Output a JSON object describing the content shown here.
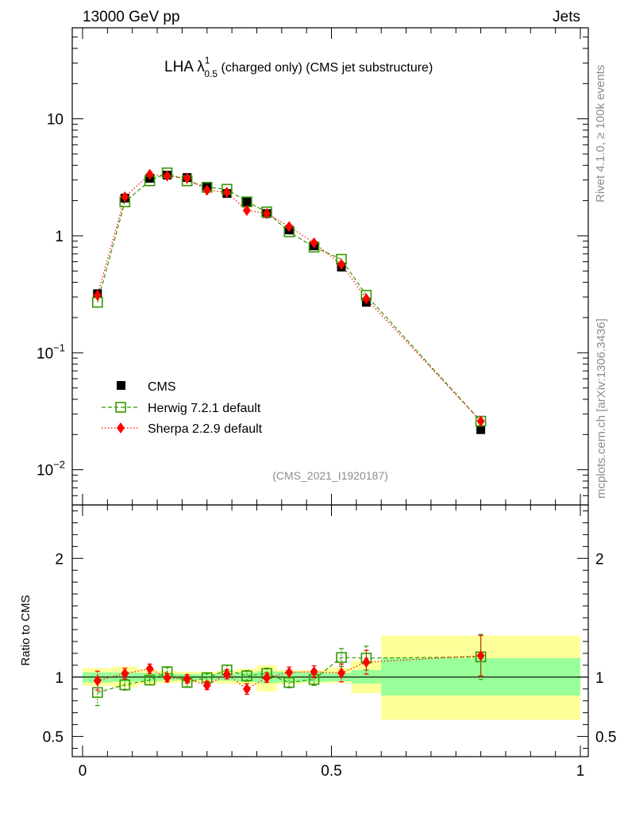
{
  "header": {
    "left": "13000 GeV pp",
    "right": "Jets"
  },
  "title": {
    "main": "LHA λ",
    "sup": "1",
    "sub": "0.5",
    "rest": " (charged only) (CMS jet substructure)"
  },
  "side_labels": {
    "rivet": "Rivet 4.1.0, ≥ 100k events",
    "mcplots": "mcplots.cern.ch [arXiv:1306.3436]"
  },
  "analysis_tag": "(CMS_2021_I1920187)",
  "ratio_ylabel": "Ratio to CMS",
  "colors": {
    "cms": "#000000",
    "herwig": "#339900",
    "sherpa": "#ff0000",
    "band_yellow": "#ffff99",
    "band_green": "#99ff99"
  },
  "chart_data": [
    {
      "type": "scatter",
      "panel": "main",
      "yscale": "log",
      "xlim": [
        0,
        1
      ],
      "ylim": [
        0.005,
        60
      ],
      "yticks": [
        {
          "value": 10,
          "label": "10"
        },
        {
          "value": 1,
          "label": "1"
        },
        {
          "value": 0.1,
          "label": "10",
          "exp": "−1"
        },
        {
          "value": 0.01,
          "label": "10",
          "exp": "−2"
        }
      ],
      "legend": [
        "CMS",
        "Herwig 7.2.1 default",
        "Sherpa 2.2.9 default"
      ],
      "x": [
        0.03,
        0.085,
        0.135,
        0.17,
        0.21,
        0.25,
        0.29,
        0.33,
        0.37,
        0.415,
        0.465,
        0.52,
        0.57,
        0.8
      ],
      "series": [
        {
          "name": "CMS",
          "values": [
            0.32,
            2.1,
            3.1,
            3.3,
            3.15,
            2.65,
            2.3,
            1.95,
            1.55,
            1.12,
            0.82,
            0.54,
            0.27,
            0.022
          ]
        },
        {
          "name": "Herwig 7.2.1 default",
          "values": [
            0.27,
            1.95,
            2.95,
            3.45,
            2.95,
            2.6,
            2.5,
            1.95,
            1.6,
            1.08,
            0.8,
            0.63,
            0.31,
            0.026
          ]
        },
        {
          "name": "Sherpa 2.2.9 default",
          "values": [
            0.31,
            2.15,
            3.35,
            3.25,
            3.1,
            2.45,
            2.35,
            1.65,
            1.55,
            1.2,
            0.87,
            0.57,
            0.29,
            0.026
          ]
        }
      ]
    },
    {
      "type": "scatter",
      "panel": "ratio",
      "xlabel": "",
      "ylabel": "Ratio to CMS",
      "xlim": [
        0,
        1
      ],
      "ylim": [
        0.33,
        2.45
      ],
      "xticks": [
        {
          "value": 0,
          "label": "0"
        },
        {
          "value": 0.5,
          "label": "0.5"
        },
        {
          "value": 1,
          "label": "1"
        }
      ],
      "yticks": [
        {
          "value": 2,
          "label": "2"
        },
        {
          "value": 1,
          "label": "1"
        },
        {
          "value": 0.5,
          "label": "0.5"
        }
      ],
      "bands": [
        {
          "x0": 0.0,
          "x1": 0.06,
          "stat_lo": 0.955,
          "stat_hi": 1.04,
          "tot_lo": 0.925,
          "tot_hi": 1.075
        },
        {
          "x0": 0.06,
          "x1": 0.11,
          "stat_lo": 0.96,
          "stat_hi": 1.04,
          "tot_lo": 0.915,
          "tot_hi": 1.09
        },
        {
          "x0": 0.11,
          "x1": 0.15,
          "stat_lo": 0.965,
          "stat_hi": 1.035,
          "tot_lo": 0.94,
          "tot_hi": 1.065
        },
        {
          "x0": 0.15,
          "x1": 0.19,
          "stat_lo": 0.97,
          "stat_hi": 1.03,
          "tot_lo": 0.95,
          "tot_hi": 1.05
        },
        {
          "x0": 0.19,
          "x1": 0.23,
          "stat_lo": 0.975,
          "stat_hi": 1.025,
          "tot_lo": 0.955,
          "tot_hi": 1.045
        },
        {
          "x0": 0.23,
          "x1": 0.27,
          "stat_lo": 0.975,
          "stat_hi": 1.025,
          "tot_lo": 0.955,
          "tot_hi": 1.045
        },
        {
          "x0": 0.27,
          "x1": 0.31,
          "stat_lo": 0.97,
          "stat_hi": 1.03,
          "tot_lo": 0.945,
          "tot_hi": 1.055
        },
        {
          "x0": 0.31,
          "x1": 0.35,
          "stat_lo": 0.96,
          "stat_hi": 1.04,
          "tot_lo": 0.935,
          "tot_hi": 1.07
        },
        {
          "x0": 0.35,
          "x1": 0.39,
          "stat_lo": 0.95,
          "stat_hi": 1.05,
          "tot_lo": 0.88,
          "tot_hi": 1.1
        },
        {
          "x0": 0.39,
          "x1": 0.44,
          "stat_lo": 0.955,
          "stat_hi": 1.045,
          "tot_lo": 0.94,
          "tot_hi": 1.06
        },
        {
          "x0": 0.44,
          "x1": 0.49,
          "stat_lo": 0.96,
          "stat_hi": 1.04,
          "tot_lo": 0.95,
          "tot_hi": 1.06
        },
        {
          "x0": 0.49,
          "x1": 0.54,
          "stat_lo": 0.965,
          "stat_hi": 1.035,
          "tot_lo": 0.95,
          "tot_hi": 1.08
        },
        {
          "x0": 0.54,
          "x1": 0.6,
          "stat_lo": 0.945,
          "stat_hi": 1.06,
          "tot_lo": 0.865,
          "tot_hi": 1.14
        },
        {
          "x0": 0.6,
          "x1": 1.0,
          "stat_lo": 0.845,
          "stat_hi": 1.16,
          "tot_lo": 0.64,
          "tot_hi": 1.35
        }
      ],
      "x": [
        0.03,
        0.085,
        0.135,
        0.17,
        0.21,
        0.25,
        0.29,
        0.33,
        0.37,
        0.415,
        0.465,
        0.52,
        0.57,
        0.8
      ],
      "series": [
        {
          "name": "Herwig 7.2.1 default",
          "values": [
            0.87,
            0.935,
            0.975,
            1.045,
            0.955,
            0.995,
            1.06,
            1.01,
            1.03,
            0.955,
            0.98,
            1.165,
            1.16,
            1.17
          ],
          "errors": [
            0.11,
            0.045,
            0.04,
            0.035,
            0.035,
            0.035,
            0.04,
            0.045,
            0.045,
            0.045,
            0.05,
            0.075,
            0.1,
            0.19
          ]
        },
        {
          "name": "Sherpa 2.2.9 default",
          "values": [
            0.97,
            1.03,
            1.07,
            0.995,
            0.985,
            0.93,
            1.025,
            0.9,
            0.995,
            1.04,
            1.045,
            1.035,
            1.125,
            1.18
          ],
          "errors": [
            0.08,
            0.045,
            0.04,
            0.035,
            0.035,
            0.035,
            0.04,
            0.045,
            0.04,
            0.045,
            0.05,
            0.075,
            0.1,
            0.17
          ]
        }
      ]
    }
  ]
}
